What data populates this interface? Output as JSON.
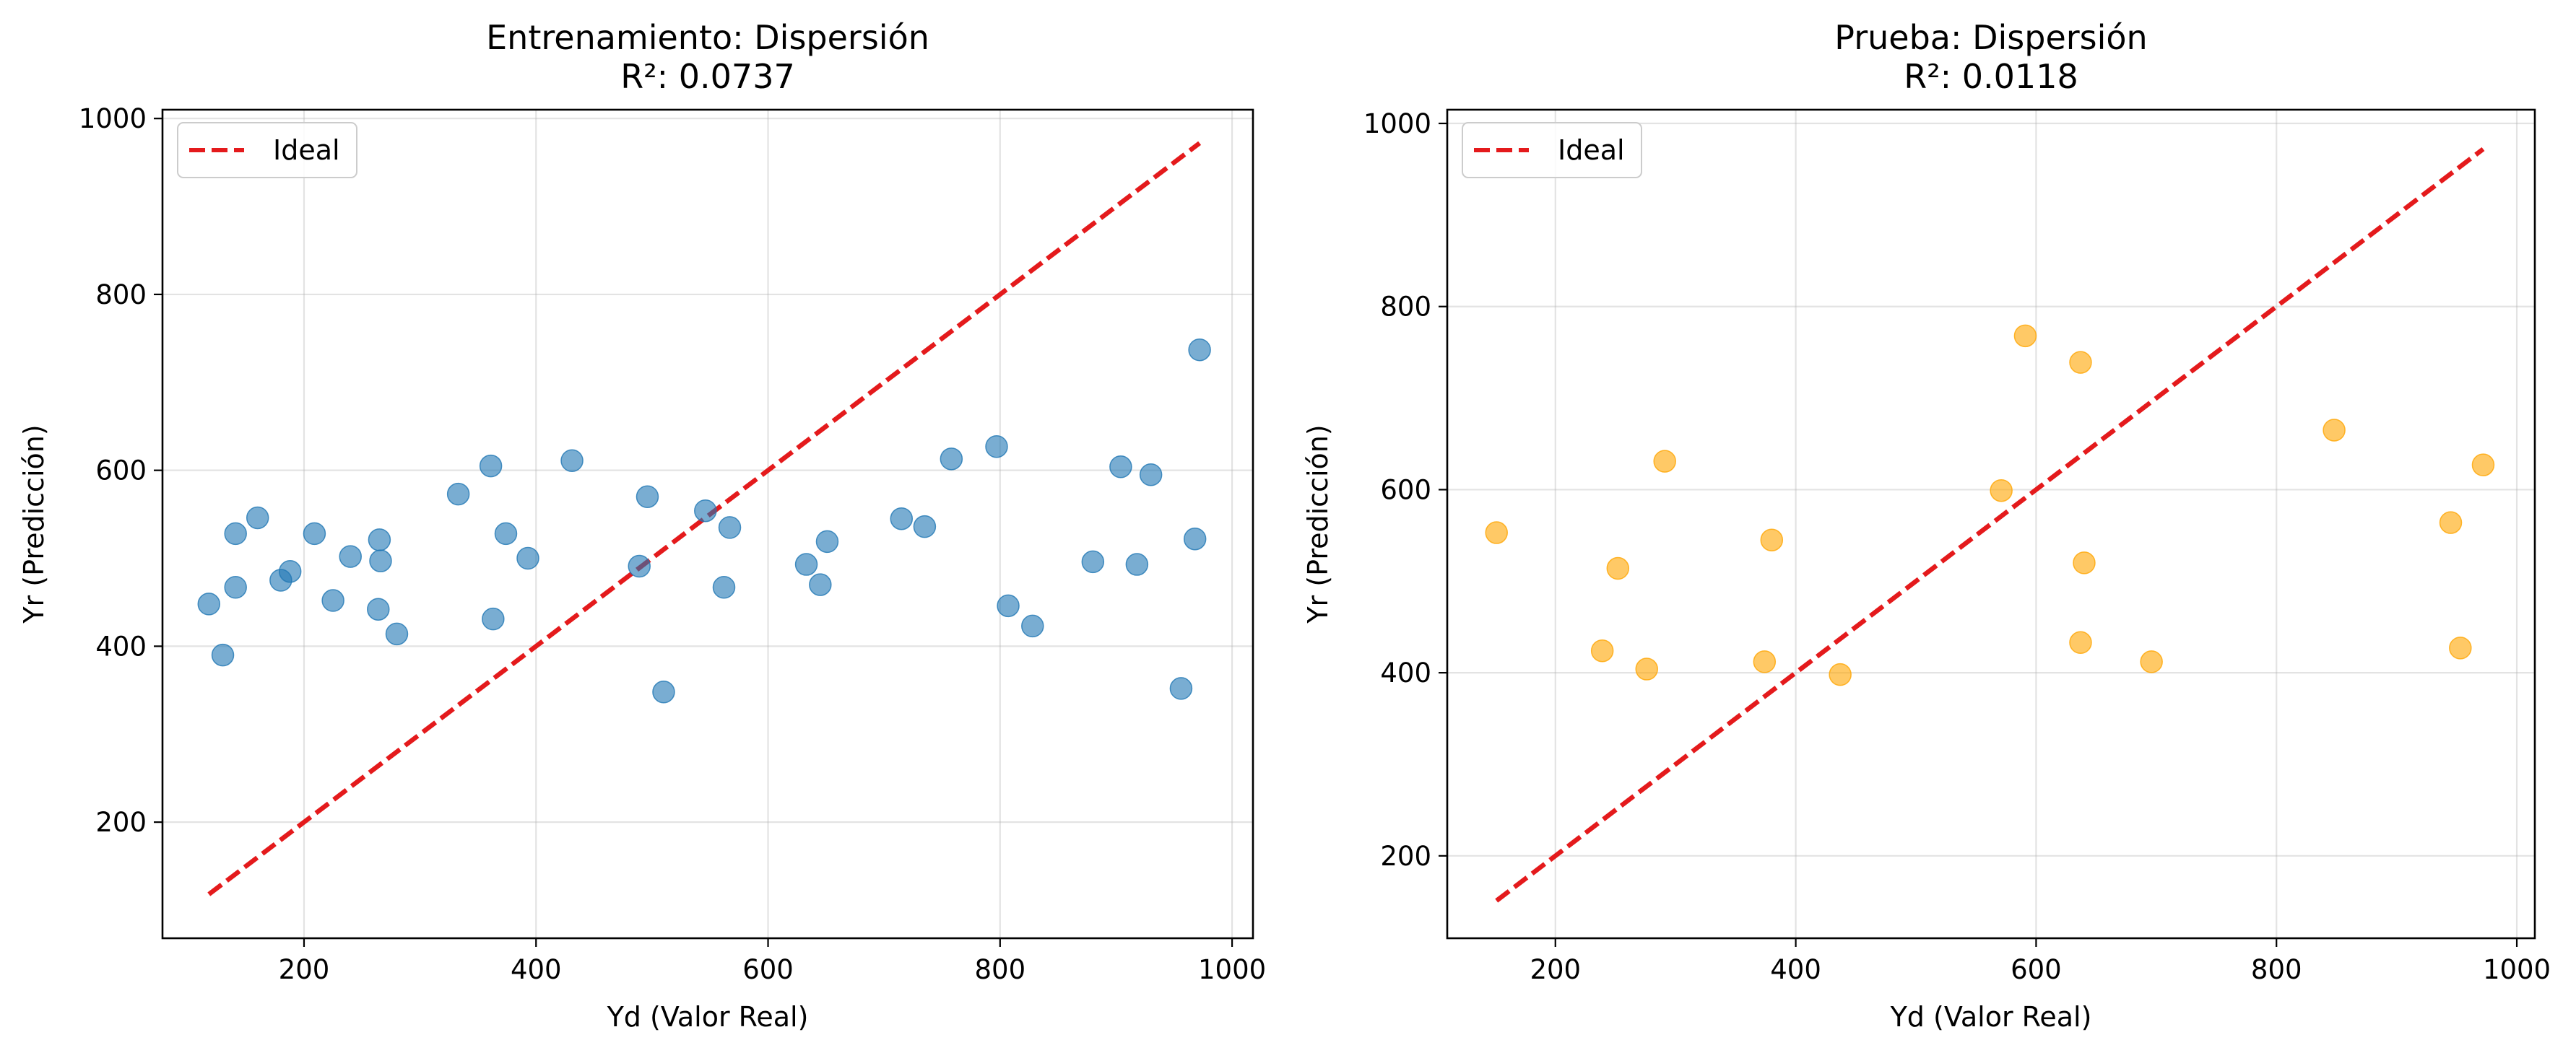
{
  "chart_data": [
    {
      "type": "scatter",
      "title": "Entrenamiento: Dispersión",
      "subtitle": "R²: 0.0737",
      "xlabel": "Yd (Valor Real)",
      "ylabel": "Yr (Predicción)",
      "xlim": [
        78,
        1018
      ],
      "ylim": [
        68,
        1010
      ],
      "xticks": [
        200,
        400,
        600,
        800,
        1000
      ],
      "yticks": [
        200,
        400,
        600,
        800,
        1000
      ],
      "grid": true,
      "legend_position": "top-left",
      "point_color": "#1f77b4",
      "ideal_color": "#e41a1c",
      "ideal_line": {
        "name": "Ideal",
        "x": [
          118,
          972
        ],
        "y": [
          118,
          972
        ]
      },
      "points": [
        [
          118,
          448
        ],
        [
          130,
          390
        ],
        [
          141,
          528
        ],
        [
          141,
          467
        ],
        [
          160,
          546
        ],
        [
          180,
          475
        ],
        [
          188,
          485
        ],
        [
          209,
          528
        ],
        [
          225,
          452
        ],
        [
          240,
          502
        ],
        [
          264,
          442
        ],
        [
          265,
          521
        ],
        [
          266,
          497
        ],
        [
          280,
          414
        ],
        [
          333,
          573
        ],
        [
          361,
          605
        ],
        [
          363,
          431
        ],
        [
          374,
          528
        ],
        [
          393,
          500
        ],
        [
          431,
          611
        ],
        [
          489,
          491
        ],
        [
          496,
          570
        ],
        [
          510,
          348
        ],
        [
          546,
          554
        ],
        [
          562,
          467
        ],
        [
          567,
          535
        ],
        [
          633,
          493
        ],
        [
          645,
          470
        ],
        [
          651,
          519
        ],
        [
          715,
          545
        ],
        [
          735,
          536
        ],
        [
          758,
          613
        ],
        [
          797,
          627
        ],
        [
          807,
          446
        ],
        [
          828,
          423
        ],
        [
          880,
          496
        ],
        [
          904,
          604
        ],
        [
          918,
          493
        ],
        [
          930,
          595
        ],
        [
          956,
          352
        ],
        [
          968,
          522
        ],
        [
          972,
          737
        ]
      ]
    },
    {
      "type": "scatter",
      "title": "Prueba: Dispersión",
      "subtitle": "R²: 0.0118",
      "xlabel": "Yd (Valor Real)",
      "ylabel": "Yr (Predicción)",
      "xlim": [
        110,
        1015
      ],
      "ylim": [
        110,
        1015
      ],
      "xticks": [
        200,
        400,
        600,
        800,
        1000
      ],
      "yticks": [
        200,
        400,
        600,
        800,
        1000
      ],
      "grid": true,
      "legend_position": "top-left",
      "point_color": "#ffa500",
      "ideal_color": "#e41a1c",
      "ideal_line": {
        "name": "Ideal",
        "x": [
          151,
          972
        ],
        "y": [
          151,
          972
        ]
      },
      "points": [
        [
          151,
          553
        ],
        [
          239,
          424
        ],
        [
          252,
          514
        ],
        [
          276,
          404
        ],
        [
          291,
          631
        ],
        [
          374,
          412
        ],
        [
          380,
          545
        ],
        [
          437,
          398
        ],
        [
          571,
          599
        ],
        [
          591,
          768
        ],
        [
          637,
          433
        ],
        [
          637,
          739
        ],
        [
          640,
          520
        ],
        [
          696,
          412
        ],
        [
          848,
          665
        ],
        [
          945,
          564
        ],
        [
          953,
          427
        ],
        [
          972,
          627
        ]
      ]
    }
  ]
}
